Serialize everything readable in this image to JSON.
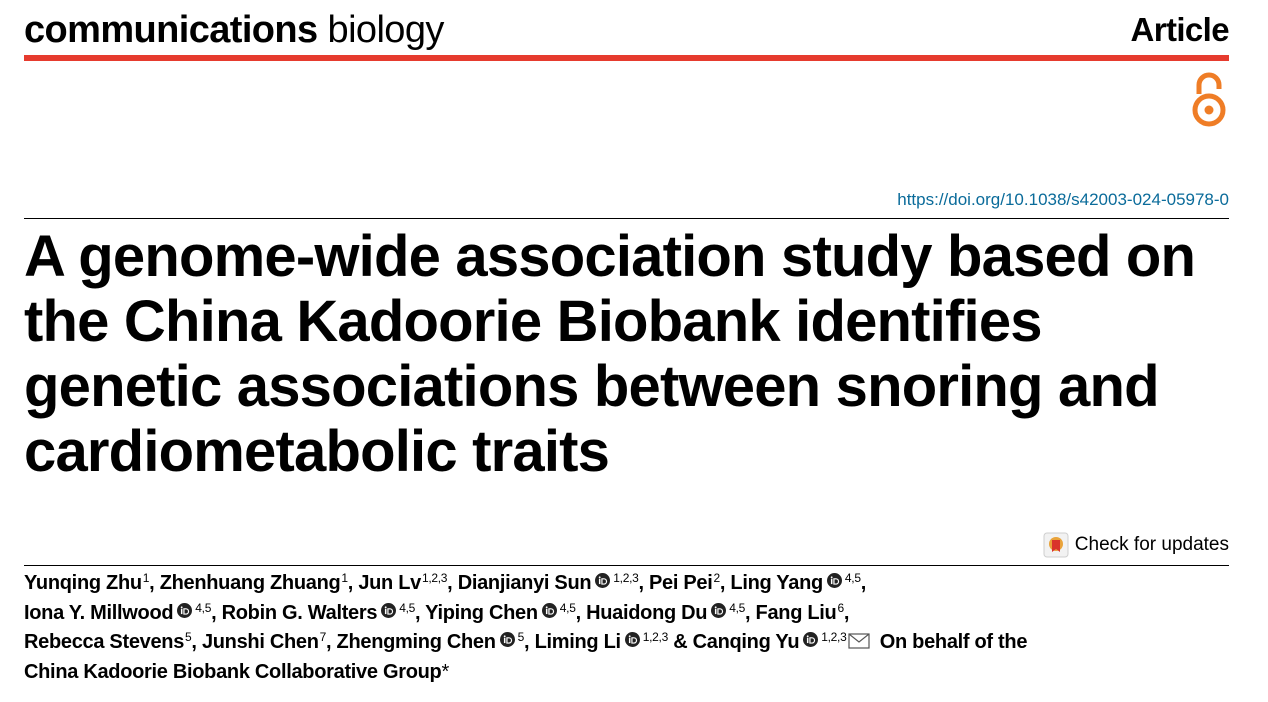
{
  "header": {
    "journal_bold": "communications",
    "journal_light": "biology",
    "article_type": "Article",
    "open_access_icon": "open-access-lock-icon",
    "colors": {
      "rule": "#e63b2e",
      "open_access": "#ef7d26",
      "doi_link": "#0a6b9a"
    }
  },
  "doi": "https://doi.org/10.1038/s42003-024-05978-0",
  "title": "A genome-wide association study based on the China Kadoorie Biobank identifies genetic associations between snoring and cardiometabolic traits",
  "check_updates_label": "Check for updates",
  "authors": [
    {
      "name": "Yunqing Zhu",
      "orcid": false,
      "aff": "1",
      "sep": ", "
    },
    {
      "name": "Zhenhuang Zhuang",
      "orcid": false,
      "aff": "1",
      "sep": ", "
    },
    {
      "name": "Jun Lv",
      "orcid": false,
      "aff": "1,2,3",
      "sep": ", "
    },
    {
      "name": "Dianjianyi Sun",
      "orcid": true,
      "aff": "1,2,3",
      "sep": ", "
    },
    {
      "name": "Pei Pei",
      "orcid": false,
      "aff": "2",
      "sep": ", "
    },
    {
      "name": "Ling Yang",
      "orcid": true,
      "aff": "4,5",
      "sep": ",",
      "br": true
    },
    {
      "name": "Iona Y. Millwood",
      "orcid": true,
      "aff": "4,5",
      "sep": ", "
    },
    {
      "name": "Robin G. Walters",
      "orcid": true,
      "aff": "4,5",
      "sep": ", "
    },
    {
      "name": "Yiping Chen",
      "orcid": true,
      "aff": "4,5",
      "sep": ", "
    },
    {
      "name": "Huaidong Du",
      "orcid": true,
      "aff": "4,5",
      "sep": ", "
    },
    {
      "name": "Fang Liu",
      "orcid": false,
      "aff": "6",
      "sep": ",",
      "br": true
    },
    {
      "name": "Rebecca Stevens",
      "orcid": false,
      "aff": "5",
      "sep": ", "
    },
    {
      "name": "Junshi Chen",
      "orcid": false,
      "aff": "7",
      "sep": ", "
    },
    {
      "name": "Zhengming Chen",
      "orcid": true,
      "aff": "5",
      "sep": ", "
    },
    {
      "name": "Liming Li",
      "orcid": true,
      "aff": "1,2,3",
      "sep": " & "
    },
    {
      "name": "Canqing Yu",
      "orcid": true,
      "aff": "1,2,3",
      "mail": true,
      "sep": " "
    }
  ],
  "collab_group": "On behalf of the China Kadoorie Biobank Collaborative Group",
  "collab_marker": "*"
}
